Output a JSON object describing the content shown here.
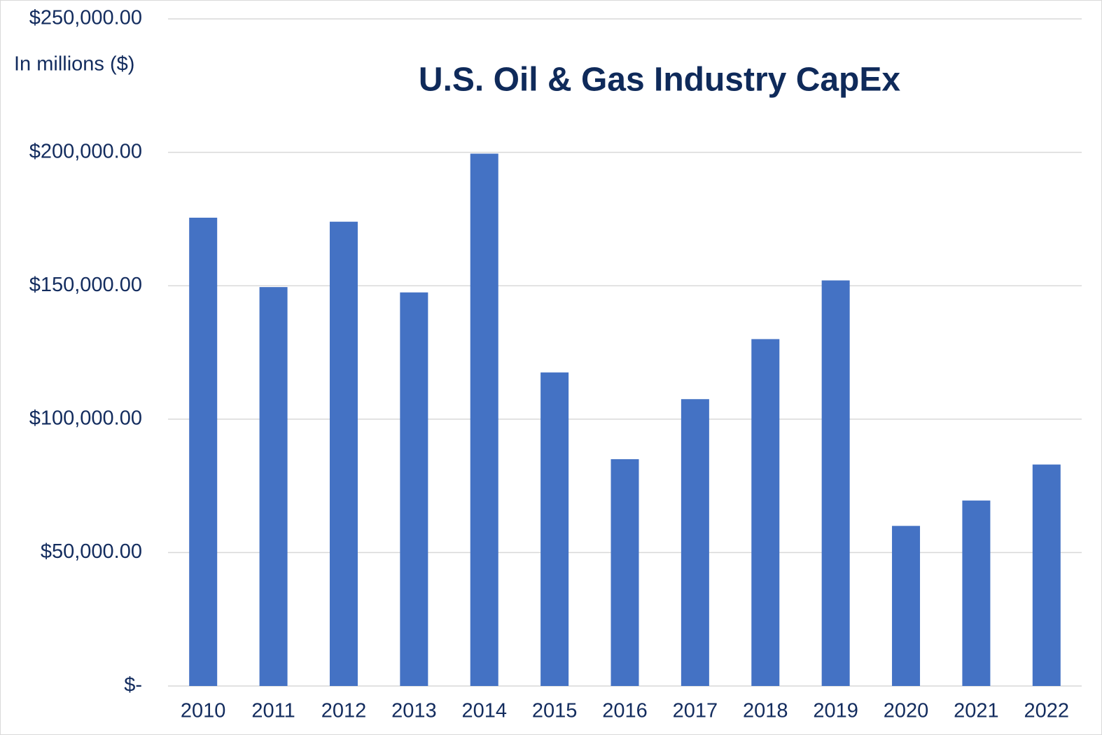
{
  "chart_data": {
    "type": "bar",
    "title": "U.S. Oil & Gas Industry CapEx",
    "y_label": "In millions ($)",
    "categories": [
      "2010",
      "2011",
      "2012",
      "2013",
      "2014",
      "2015",
      "2016",
      "2017",
      "2018",
      "2019",
      "2020",
      "2021",
      "2022"
    ],
    "values": [
      175500,
      149500,
      174000,
      147500,
      199500,
      117500,
      85000,
      107500,
      130000,
      152000,
      60000,
      69500,
      83000
    ],
    "color": "#4472c4",
    "ylim": [
      0,
      250000
    ],
    "yticks": [
      {
        "value": 0,
        "label": "$-"
      },
      {
        "value": 50000,
        "label": "$50,000.00"
      },
      {
        "value": 100000,
        "label": "$100,000.00"
      },
      {
        "value": 150000,
        "label": "$150,000.00"
      },
      {
        "value": 200000,
        "label": "$200,000.00"
      },
      {
        "value": 250000,
        "label": "$250,000.00"
      }
    ],
    "grid": true
  }
}
